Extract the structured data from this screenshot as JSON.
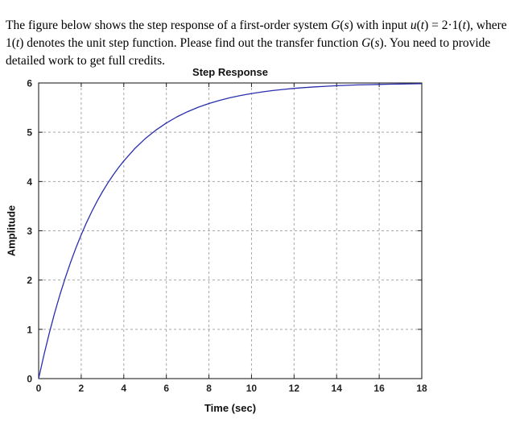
{
  "question": {
    "segments": [
      {
        "t": "The figure below shows the step response of a first-order system "
      },
      {
        "t": "G",
        "i": true
      },
      {
        "t": "("
      },
      {
        "t": "s",
        "i": true
      },
      {
        "t": ")"
      },
      {
        "t": " with input "
      },
      {
        "t": "u",
        "i": true
      },
      {
        "t": "("
      },
      {
        "t": "t",
        "i": true
      },
      {
        "t": ") = 2·1("
      },
      {
        "t": "t",
        "i": true
      },
      {
        "t": "), where 1("
      },
      {
        "t": "t",
        "i": true
      },
      {
        "t": ") denotes the unit step function. Please find out the transfer function "
      },
      {
        "t": "G",
        "i": true
      },
      {
        "t": "("
      },
      {
        "t": "s",
        "i": true
      },
      {
        "t": ")"
      },
      {
        "t": ". You need to provide detailed work to get full credits."
      }
    ]
  },
  "chart_data": {
    "type": "line",
    "title": "Step Response",
    "xlabel": "Time (sec)",
    "ylabel": "Amplitude",
    "xlim": [
      0,
      18
    ],
    "ylim": [
      0,
      6
    ],
    "xticks": [
      0,
      2,
      4,
      6,
      8,
      10,
      12,
      14,
      16,
      18
    ],
    "yticks": [
      0,
      1,
      2,
      3,
      4,
      5,
      6
    ],
    "grid": true,
    "legend": "none",
    "line_color": "#2a2fae",
    "model": "y(t) = 6·(1 − e^(−t/3)); final value 6, time constant ≈ 3 s",
    "series": [
      {
        "name": "step response",
        "points": [
          [
            0,
            0
          ],
          [
            0.25,
            0.48
          ],
          [
            0.5,
            0.921
          ],
          [
            0.75,
            1.327
          ],
          [
            1,
            1.701
          ],
          [
            1.25,
            2.045
          ],
          [
            1.5,
            2.361
          ],
          [
            1.75,
            2.652
          ],
          [
            2,
            2.919
          ],
          [
            2.25,
            3.166
          ],
          [
            2.5,
            3.392
          ],
          [
            2.75,
            3.601
          ],
          [
            3,
            3.793
          ],
          [
            3.25,
            3.969
          ],
          [
            3.5,
            4.132
          ],
          [
            3.75,
            4.281
          ],
          [
            4,
            4.418
          ],
          [
            4.5,
            4.661
          ],
          [
            5,
            4.867
          ],
          [
            5.5,
            5.041
          ],
          [
            6,
            5.188
          ],
          [
            6.5,
            5.313
          ],
          [
            7,
            5.418
          ],
          [
            7.5,
            5.508
          ],
          [
            8,
            5.583
          ],
          [
            8.5,
            5.647
          ],
          [
            9,
            5.701
          ],
          [
            9.5,
            5.747
          ],
          [
            10,
            5.786
          ],
          [
            10.5,
            5.819
          ],
          [
            11,
            5.847
          ],
          [
            11.5,
            5.87
          ],
          [
            12,
            5.89
          ],
          [
            12.5,
            5.907
          ],
          [
            13,
            5.921
          ],
          [
            13.5,
            5.933
          ],
          [
            14,
            5.944
          ],
          [
            14.5,
            5.952
          ],
          [
            15,
            5.96
          ],
          [
            15.5,
            5.966
          ],
          [
            16,
            5.971
          ],
          [
            16.5,
            5.975
          ],
          [
            17,
            5.979
          ],
          [
            17.5,
            5.982
          ],
          [
            18,
            5.985
          ]
        ]
      }
    ]
  }
}
